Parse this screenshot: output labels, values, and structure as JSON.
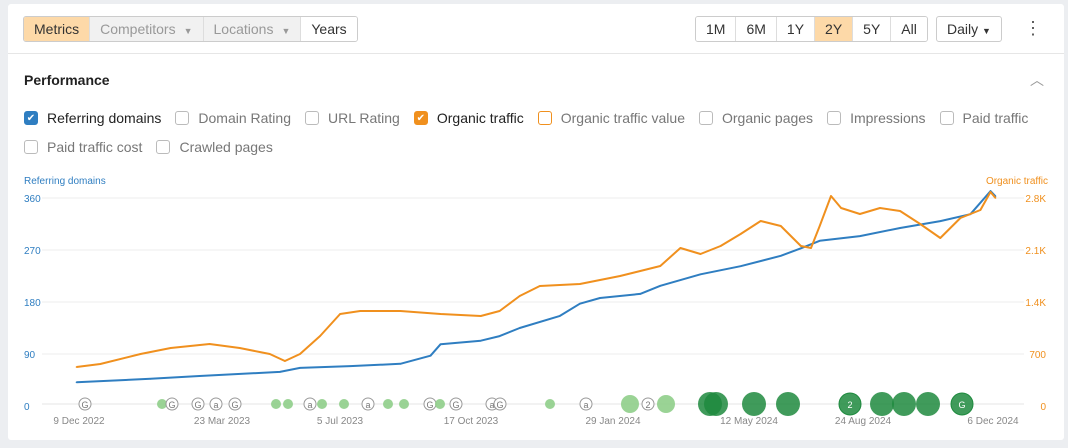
{
  "toolbar": {
    "segments": [
      {
        "label": "Metrics",
        "state": "active"
      },
      {
        "label": "Competitors",
        "state": "disabled"
      },
      {
        "label": "Locations",
        "state": "disabled"
      },
      {
        "label": "Years",
        "state": "normal"
      }
    ],
    "ranges": [
      "1M",
      "6M",
      "1Y",
      "2Y",
      "5Y",
      "All"
    ],
    "active_range": "2Y",
    "interval": "Daily"
  },
  "section": {
    "title": "Performance"
  },
  "metrics": [
    {
      "label": "Referring domains",
      "checked": true,
      "color": "#2f7ec1"
    },
    {
      "label": "Domain Rating",
      "checked": false
    },
    {
      "label": "URL Rating",
      "checked": false
    },
    {
      "label": "Organic traffic",
      "checked": true,
      "color": "#f0901e"
    },
    {
      "label": "Organic traffic value",
      "checked": false,
      "color": "#f0901e"
    },
    {
      "label": "Organic pages",
      "checked": false
    },
    {
      "label": "Impressions",
      "checked": false
    },
    {
      "label": "Paid traffic",
      "checked": false
    },
    {
      "label": "Paid traffic cost",
      "checked": false
    },
    {
      "label": "Crawled pages",
      "checked": false
    }
  ],
  "chart_data": {
    "type": "line",
    "left_axis": {
      "label": "Referring domains",
      "ticks": [
        "0",
        "90",
        "180",
        "270",
        "360"
      ],
      "range": [
        0,
        360
      ],
      "color": "#2f7ec1"
    },
    "right_axis": {
      "label": "Organic traffic",
      "ticks": [
        "0",
        "700",
        "1.4K",
        "2.1K",
        "2.8K"
      ],
      "range": [
        0,
        2800
      ],
      "color": "#f0901e"
    },
    "x_ticks": [
      "9 Dec 2022",
      "23 Mar 2023",
      "5 Jul 2023",
      "17 Oct 2023",
      "29 Jan 2024",
      "12 May 2024",
      "24 Aug 2024",
      "6 Dec 2024"
    ],
    "x_range": [
      "2022-12-09",
      "2024-12-06"
    ],
    "grid": true,
    "series": [
      {
        "name": "Referring domains",
        "axis": "left",
        "color": "#2f7ec1",
        "points": [
          [
            "2022-12-07",
            41
          ],
          [
            "2023-02-04",
            47
          ],
          [
            "2023-03-15",
            52
          ],
          [
            "2023-05-18",
            59
          ],
          [
            "2023-06-03",
            66
          ],
          [
            "2023-07-13",
            69
          ],
          [
            "2023-08-22",
            73
          ],
          [
            "2023-09-15",
            87
          ],
          [
            "2023-09-23",
            107
          ],
          [
            "2023-10-25",
            113
          ],
          [
            "2023-11-09",
            121
          ],
          [
            "2023-11-25",
            135
          ],
          [
            "2023-12-27",
            156
          ],
          [
            "2024-01-12",
            177
          ],
          [
            "2024-01-28",
            187
          ],
          [
            "2024-02-29",
            194
          ],
          [
            "2024-03-16",
            208
          ],
          [
            "2024-04-17",
            228
          ],
          [
            "2024-05-19",
            242
          ],
          [
            "2024-06-20",
            260
          ],
          [
            "2024-07-06",
            273
          ],
          [
            "2024-07-21",
            286
          ],
          [
            "2024-08-22",
            294
          ],
          [
            "2024-09-23",
            308
          ],
          [
            "2024-10-25",
            320
          ],
          [
            "2024-11-18",
            332
          ],
          [
            "2024-12-04",
            372
          ],
          [
            "2024-12-08",
            363
          ]
        ]
      },
      {
        "name": "Organic traffic",
        "axis": "right",
        "color": "#f0901e",
        "points": [
          [
            "2022-12-07",
            525
          ],
          [
            "2022-12-26",
            565
          ],
          [
            "2023-01-27",
            700
          ],
          [
            "2023-02-20",
            781
          ],
          [
            "2023-03-23",
            835
          ],
          [
            "2023-04-16",
            781
          ],
          [
            "2023-05-10",
            700
          ],
          [
            "2023-05-22",
            606
          ],
          [
            "2023-06-03",
            700
          ],
          [
            "2023-06-19",
            942
          ],
          [
            "2023-07-05",
            1238
          ],
          [
            "2023-07-21",
            1279
          ],
          [
            "2023-08-22",
            1279
          ],
          [
            "2023-09-23",
            1238
          ],
          [
            "2023-10-25",
            1211
          ],
          [
            "2023-11-09",
            1279
          ],
          [
            "2023-11-25",
            1481
          ],
          [
            "2023-12-11",
            1615
          ],
          [
            "2024-01-12",
            1642
          ],
          [
            "2024-02-13",
            1750
          ],
          [
            "2024-03-16",
            1885
          ],
          [
            "2024-04-01",
            2127
          ],
          [
            "2024-04-17",
            2046
          ],
          [
            "2024-05-03",
            2154
          ],
          [
            "2024-05-19",
            2315
          ],
          [
            "2024-06-04",
            2490
          ],
          [
            "2024-06-20",
            2423
          ],
          [
            "2024-07-06",
            2154
          ],
          [
            "2024-07-14",
            2127
          ],
          [
            "2024-07-21",
            2423
          ],
          [
            "2024-07-30",
            2827
          ],
          [
            "2024-08-07",
            2665
          ],
          [
            "2024-08-22",
            2585
          ],
          [
            "2024-09-07",
            2665
          ],
          [
            "2024-09-23",
            2625
          ],
          [
            "2024-10-09",
            2450
          ],
          [
            "2024-10-25",
            2262
          ],
          [
            "2024-11-10",
            2531
          ],
          [
            "2024-11-26",
            2638
          ],
          [
            "2024-12-04",
            2881
          ],
          [
            "2024-12-08",
            2800
          ]
        ]
      }
    ]
  }
}
